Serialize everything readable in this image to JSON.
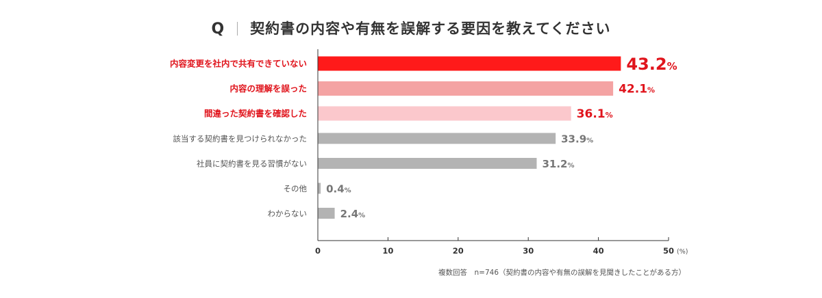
{
  "title": {
    "q_marker": "Q",
    "question": "契約書の内容や有無を誤解する要因を教えてください"
  },
  "chart_data": {
    "type": "bar",
    "orientation": "horizontal",
    "categories": [
      "内容変更を社内で共有できていない",
      "内容の理解を誤った",
      "間違った契約書を確認した",
      "該当する契約書を見つけられなかった",
      "社員に契約書を見る習慣がない",
      "その他",
      "わからない"
    ],
    "values": [
      43.2,
      42.1,
      36.1,
      33.9,
      31.2,
      0.4,
      2.4
    ],
    "value_labels": [
      "43.2",
      "42.1",
      "36.1",
      "33.9",
      "31.2",
      "0.4",
      "2.4"
    ],
    "value_unit": "%",
    "bar_colors": [
      "#ff1a1a",
      "#f4a3a3",
      "#fbc8cc",
      "#b3b3b3",
      "#b3b3b3",
      "#b3b3b3",
      "#b3b3b3"
    ],
    "label_colors": [
      "#e0141c",
      "#e0141c",
      "#e0141c",
      "#555555",
      "#555555",
      "#555555",
      "#555555"
    ],
    "value_colors": [
      "#e0141c",
      "#e0141c",
      "#e0141c",
      "#777777",
      "#777777",
      "#777777",
      "#777777"
    ],
    "emphasis": [
      true,
      true,
      true,
      false,
      false,
      false,
      false
    ],
    "xlim": [
      0,
      50
    ],
    "xticks": [
      0,
      10,
      20,
      30,
      40,
      50
    ],
    "xtick_labels": [
      "0",
      "10",
      "20",
      "30",
      "40",
      "50"
    ],
    "xlabel": "(%)",
    "grid": false,
    "axis_color": "#333333"
  },
  "footnote": "複数回答　n=746（契約書の内容や有無の誤解を見聞きしたことがある方）"
}
